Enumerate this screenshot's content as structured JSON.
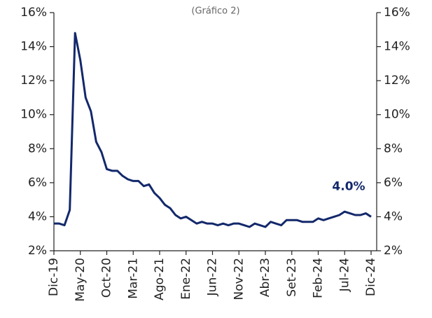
{
  "chart_data": {
    "type": "line",
    "subtitle": "(Gráfico 2)",
    "annotation": "4.0%",
    "categories": [
      "Dic-19",
      null,
      null,
      null,
      null,
      "May-20",
      null,
      null,
      null,
      null,
      "Oct-20",
      null,
      null,
      null,
      null,
      "Mar-21",
      null,
      null,
      null,
      null,
      "Ago-21",
      null,
      null,
      null,
      null,
      "Ene-22",
      null,
      null,
      null,
      null,
      "Jun-22",
      null,
      null,
      null,
      null,
      "Nov-22",
      null,
      null,
      null,
      null,
      "Abr-23",
      null,
      null,
      null,
      null,
      "Set-23",
      null,
      null,
      null,
      null,
      "Feb-24",
      null,
      null,
      null,
      null,
      "Jul-24",
      null,
      null,
      null,
      null,
      "Dic-24"
    ],
    "series": [
      {
        "color": "#13286b",
        "values": [
          3.6,
          3.6,
          3.5,
          4.4,
          14.8,
          13.2,
          11.0,
          10.2,
          8.4,
          7.8,
          6.8,
          6.7,
          6.7,
          6.4,
          6.2,
          6.1,
          6.1,
          5.8,
          5.9,
          5.4,
          5.1,
          4.7,
          4.5,
          4.1,
          3.9,
          4.0,
          3.8,
          3.6,
          3.7,
          3.6,
          3.6,
          3.5,
          3.6,
          3.5,
          3.6,
          3.6,
          3.5,
          3.4,
          3.6,
          3.5,
          3.4,
          3.7,
          3.6,
          3.5,
          3.8,
          3.8,
          3.8,
          3.7,
          3.7,
          3.7,
          3.9,
          3.8,
          3.9,
          4.0,
          4.1,
          4.3,
          4.2,
          4.1,
          4.1,
          4.2,
          4.0
        ]
      }
    ],
    "ylim": [
      2,
      16
    ],
    "yticks": [
      {
        "value": 2,
        "label": "2%"
      },
      {
        "value": 4,
        "label": "4%"
      },
      {
        "value": 6,
        "label": "6%"
      },
      {
        "value": 8,
        "label": "8%"
      },
      {
        "value": 10,
        "label": "10%"
      },
      {
        "value": 12,
        "label": "12%"
      },
      {
        "value": 14,
        "label": "14%"
      },
      {
        "value": 16,
        "label": "16%"
      }
    ],
    "y2lim": [
      2,
      16
    ],
    "y2ticks": [
      {
        "value": 2,
        "label": "2%"
      },
      {
        "value": 4,
        "label": "4%"
      },
      {
        "value": 6,
        "label": "6%"
      },
      {
        "value": 8,
        "label": "8%"
      },
      {
        "value": 10,
        "label": "10%"
      },
      {
        "value": 12,
        "label": "12%"
      },
      {
        "value": 14,
        "label": "14%"
      },
      {
        "value": 16,
        "label": "16%"
      }
    ]
  }
}
